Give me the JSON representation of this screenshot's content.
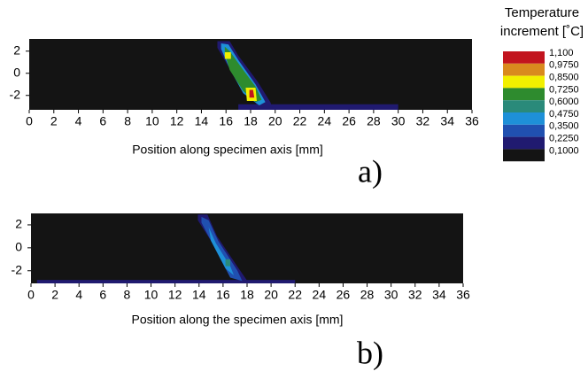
{
  "chart_data": {
    "type": "contour",
    "legend_title": [
      "Temperature",
      "increment [˚C]"
    ],
    "levels": [
      {
        "value": 1.1,
        "label": "1,100",
        "color": "#c2141e"
      },
      {
        "value": 0.975,
        "label": "0,9750",
        "color": "#d98a1e"
      },
      {
        "value": 0.85,
        "label": "0,8500",
        "color": "#f2f000"
      },
      {
        "value": 0.725,
        "label": "0,7250",
        "color": "#2e8b2e"
      },
      {
        "value": 0.6,
        "label": "0,6000",
        "color": "#2a8a7a"
      },
      {
        "value": 0.475,
        "label": "0,4750",
        "color": "#1e90d8"
      },
      {
        "value": 0.35,
        "label": "0,3500",
        "color": "#2050b0"
      },
      {
        "value": 0.225,
        "label": "0,2250",
        "color": "#201a70"
      },
      {
        "value": 0.1,
        "label": "0,1000",
        "color": "#141414"
      }
    ],
    "panels": [
      {
        "label": "a)",
        "xlabel": "Position along specimen axis [mm]",
        "xlim": [
          0,
          36
        ],
        "xticks": [
          0,
          2,
          4,
          6,
          8,
          10,
          12,
          14,
          16,
          18,
          20,
          22,
          24,
          26,
          28,
          30,
          32,
          34,
          36
        ],
        "ylim": [
          -3.3,
          3.1
        ],
        "yticks": [
          2,
          0,
          -2
        ],
        "contours": [
          {
            "level": 0.225,
            "x": [
              17,
              30,
              30,
              17
            ],
            "y": [
              -2.8,
              -2.8,
              -3.3,
              -3.3
            ]
          },
          {
            "level": 0.225,
            "x": [
              15.3,
              16.3,
              17.0,
              18.6,
              19.6,
              19.8,
              18.8,
              17.4,
              16.2,
              15.3
            ],
            "y": [
              2.9,
              2.9,
              1.6,
              -0.8,
              -2.6,
              -3.2,
              -3.2,
              -1.4,
              0.6,
              2.3
            ]
          },
          {
            "level": 0.475,
            "x": [
              15.6,
              16.2,
              17.0,
              18.4,
              19.2,
              18.7,
              17.4,
              16.3,
              15.6
            ],
            "y": [
              2.7,
              2.6,
              1.2,
              -1.0,
              -2.6,
              -2.9,
              -1.8,
              0.4,
              2.2
            ]
          },
          {
            "level": 0.725,
            "x": [
              15.9,
              16.3,
              17.2,
              18.4,
              18.9,
              18.4,
              17.4,
              16.3,
              15.9
            ],
            "y": [
              2.4,
              2.0,
              0.6,
              -1.2,
              -2.4,
              -2.6,
              -1.6,
              0.3,
              1.8
            ]
          },
          {
            "level": 0.85,
            "x": [
              15.9,
              16.4,
              16.4,
              15.9
            ],
            "y": [
              1.9,
              1.9,
              1.3,
              1.3
            ]
          },
          {
            "level": 0.85,
            "x": [
              17.6,
              18.4,
              18.5,
              17.7
            ],
            "y": [
              -1.3,
              -1.3,
              -2.5,
              -2.5
            ]
          },
          {
            "level": 1.1,
            "x": [
              17.9,
              18.2,
              18.3,
              17.9
            ],
            "y": [
              -1.5,
              -1.5,
              -2.2,
              -2.2
            ]
          }
        ]
      },
      {
        "label": "b)",
        "xlabel": "Position along the specimen axis [mm]",
        "xlim": [
          0,
          36
        ],
        "xticks": [
          0,
          2,
          4,
          6,
          8,
          10,
          12,
          14,
          16,
          18,
          20,
          22,
          24,
          26,
          28,
          30,
          32,
          34,
          36
        ],
        "ylim": [
          -3.1,
          3.0
        ],
        "yticks": [
          2,
          0,
          -2
        ],
        "contours": [
          {
            "level": 0.225,
            "x": [
              0.5,
              22,
              22,
              0.5
            ],
            "y": [
              -2.8,
              -2.8,
              -3.1,
              -3.1
            ]
          },
          {
            "level": 0.225,
            "x": [
              13.9,
              14.7,
              15.5,
              17.3,
              18.1,
              17.6,
              16.4,
              15.0,
              13.9
            ],
            "y": [
              2.9,
              2.9,
              1.0,
              -1.8,
              -3.0,
              -3.0,
              -1.5,
              0.6,
              2.4
            ]
          },
          {
            "level": 0.35,
            "x": [
              14.2,
              14.8,
              15.6,
              17.2,
              17.6,
              16.6,
              15.2,
              14.2
            ],
            "y": [
              2.7,
              2.4,
              0.6,
              -2.0,
              -2.9,
              -2.6,
              0.2,
              2.2
            ]
          },
          {
            "level": 0.475,
            "x": [
              14.8,
              15.4,
              16.6,
              16.9,
              16.2,
              15.0
            ],
            "y": [
              1.8,
              0.4,
              -1.6,
              -2.4,
              -1.8,
              0.6
            ]
          },
          {
            "level": 0.6,
            "x": [
              16.2,
              16.6,
              16.6,
              16.2
            ],
            "y": [
              -1.0,
              -1.0,
              -1.6,
              -1.6
            ]
          }
        ]
      }
    ]
  }
}
